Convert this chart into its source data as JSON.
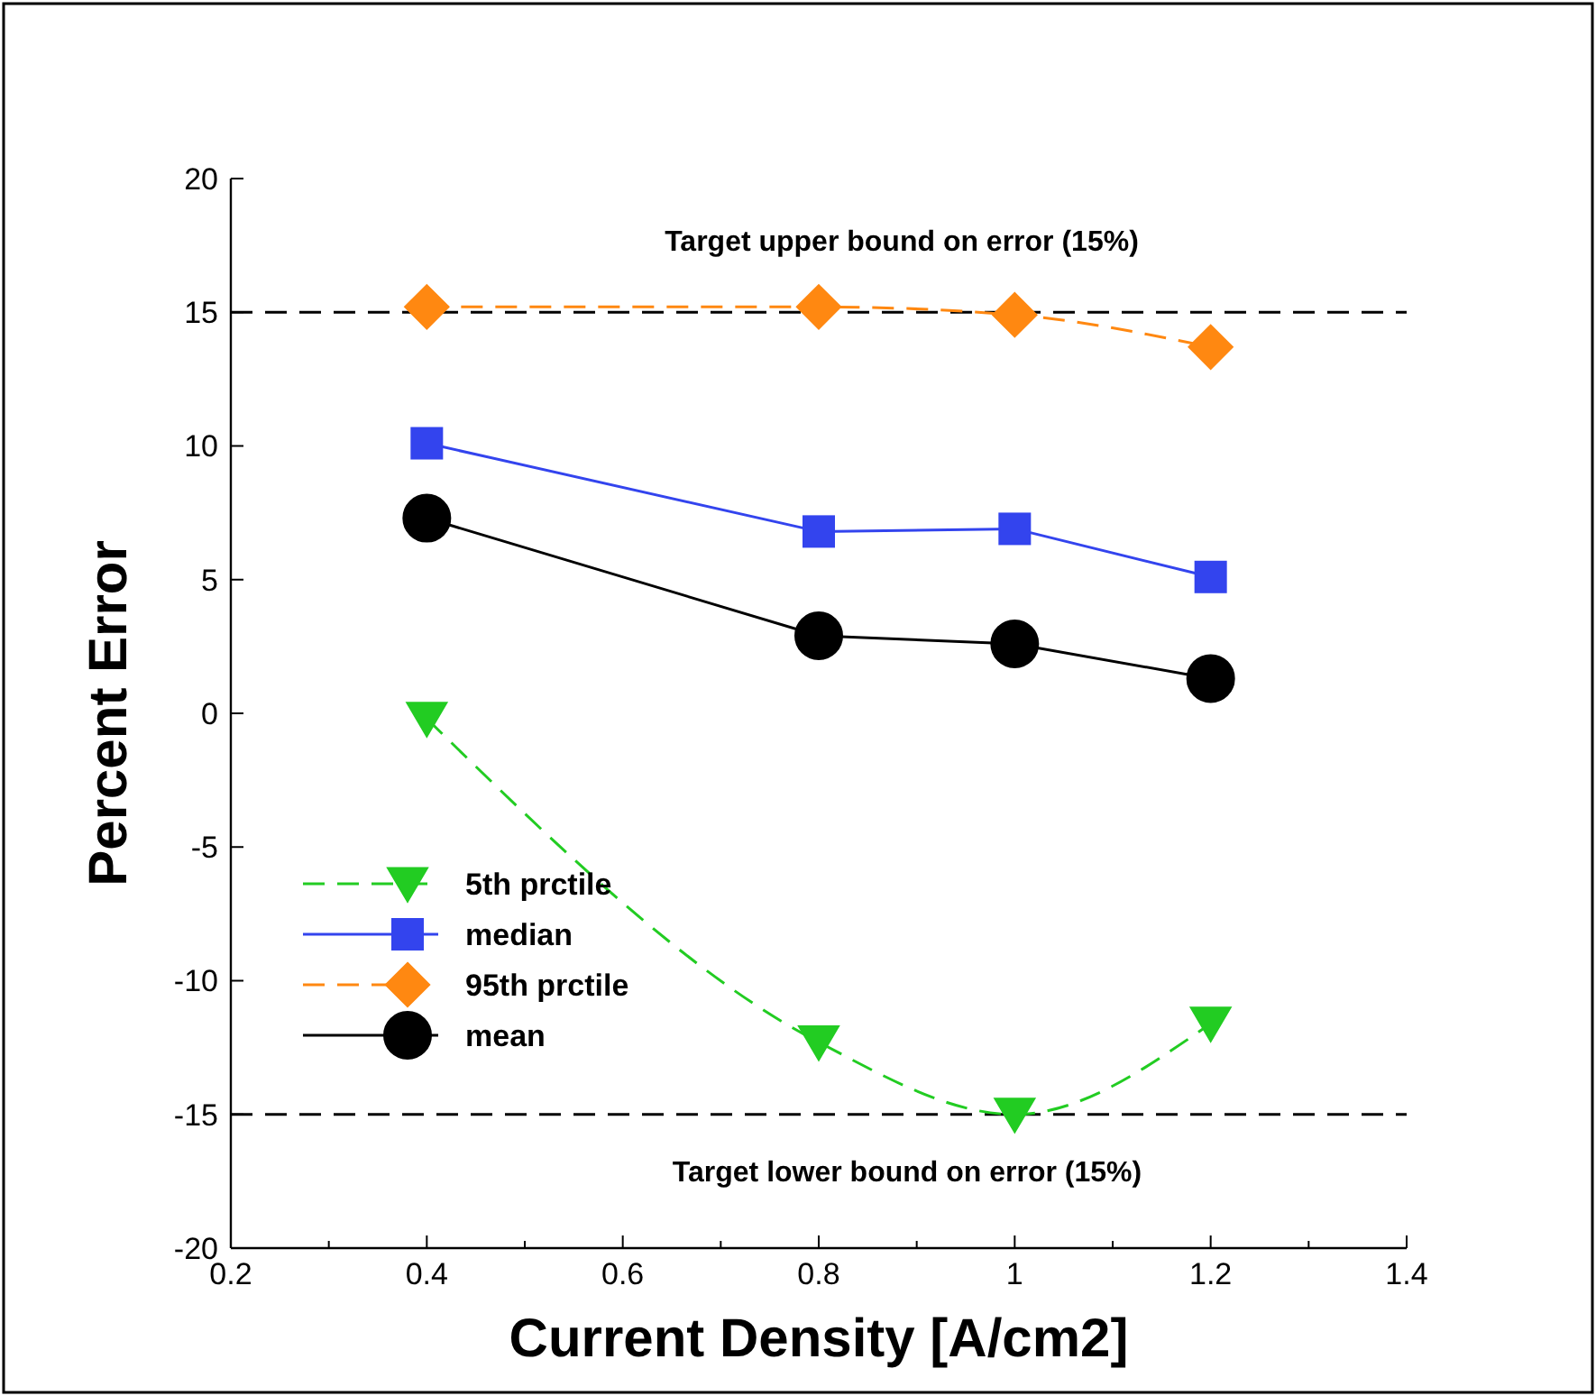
{
  "chart_data": {
    "type": "line",
    "xlabel": "Current Density [A/cm2]",
    "ylabel": "Percent Error",
    "x": [
      0.4,
      0.8,
      1.0,
      1.2
    ],
    "series": [
      {
        "name": "5th prctile",
        "color": "#22cc22",
        "marker": "triangle",
        "line_style": "dashed",
        "values": [
          -0.2,
          -12.3,
          -15.0,
          -11.6
        ]
      },
      {
        "name": "median",
        "color": "#3344ee",
        "marker": "square",
        "line_style": "solid",
        "values": [
          10.1,
          6.8,
          6.9,
          5.1
        ]
      },
      {
        "name": "95th prctile",
        "color": "#ff8811",
        "marker": "diamond",
        "line_style": "dashed",
        "values": [
          15.2,
          15.2,
          14.9,
          13.7
        ]
      },
      {
        "name": "mean",
        "color": "#000000",
        "marker": "circle",
        "line_style": "solid",
        "values": [
          7.3,
          2.9,
          2.6,
          1.3
        ]
      }
    ],
    "xlim": [
      0.2,
      1.4
    ],
    "xticks": [
      0.2,
      0.4,
      0.6,
      0.8,
      1,
      1.2,
      1.4
    ],
    "ylim": [
      -20,
      20
    ],
    "yticks": [
      -20,
      -15,
      -10,
      -5,
      0,
      5,
      10,
      15,
      20
    ],
    "ref_lines": [
      {
        "axis": "y",
        "value": 15,
        "label": "Target upper bound on error (15%)",
        "color": "#000000",
        "line_style": "dashed"
      },
      {
        "axis": "y",
        "value": -15,
        "label": "Target lower bound on error (15%)",
        "color": "#000000",
        "line_style": "dashed"
      }
    ],
    "grid": false,
    "legend": "bottom left"
  }
}
